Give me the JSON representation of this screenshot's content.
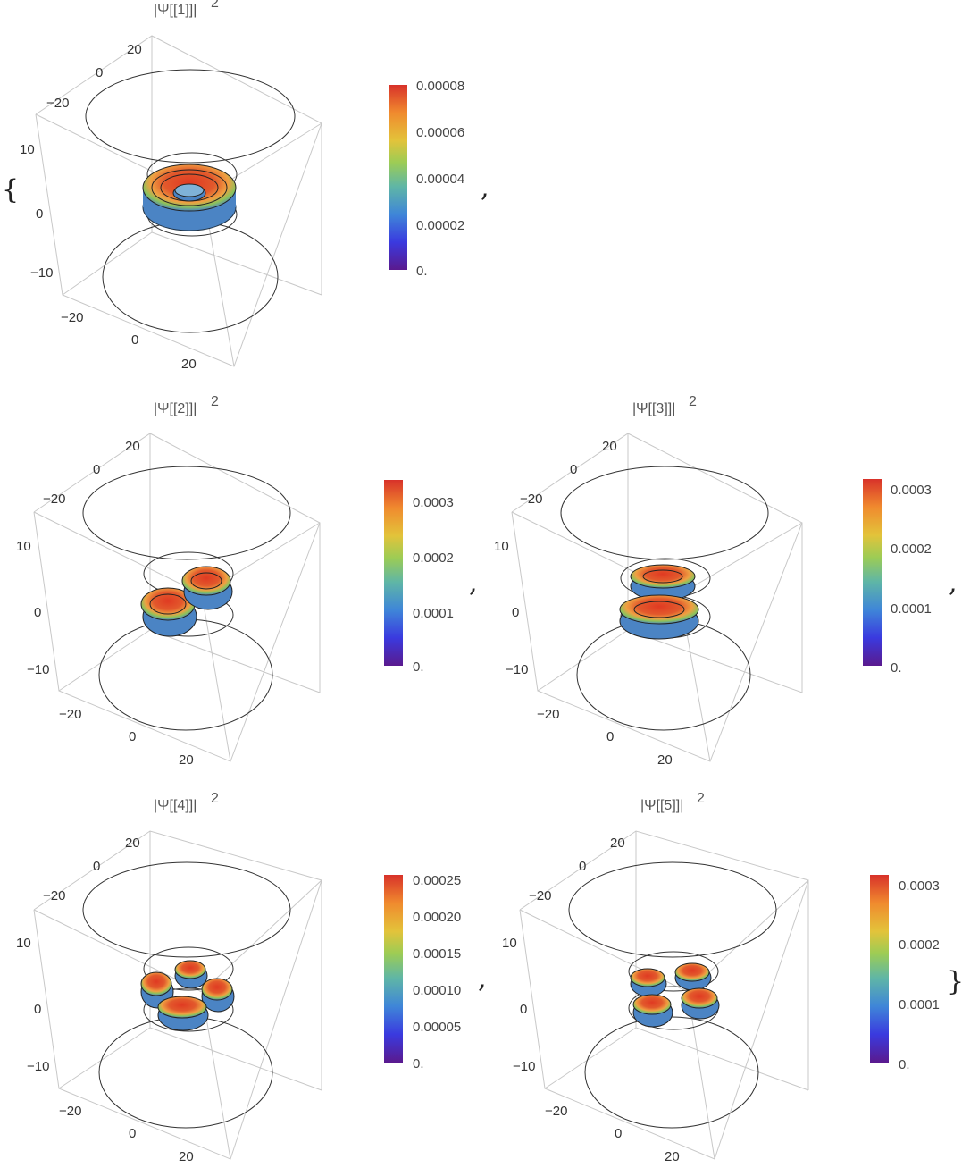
{
  "punctuation": {
    "open": "{",
    "close": "}",
    "comma": ","
  },
  "palette": [
    "#5a1a8e",
    "#3a3adf",
    "#3f86d8",
    "#5fb6a6",
    "#9ccc55",
    "#e3c33a",
    "#f08a2e",
    "#d8322a"
  ],
  "body_colors": {
    "outer": "#4b84c4",
    "inner": "#d94a2a",
    "mid": "#e59a3a",
    "rim": "#7dbf5f"
  },
  "axes": {
    "z_ticks": [
      "10",
      "0",
      "−10"
    ],
    "top_ticks": [
      "20",
      "0",
      "−20"
    ],
    "bottom_ticks": [
      "−20",
      "0",
      "20"
    ]
  },
  "plots": [
    {
      "title": "|Ψ[[1]]|",
      "exponent": "2",
      "shape": "torus",
      "cb_ticks": [
        "0.00008",
        "0.00006",
        "0.00004",
        "0.00002",
        "0."
      ]
    },
    {
      "title": "|Ψ[[2]]|",
      "exponent": "2",
      "shape": "two-lobes-diag",
      "cb_ticks": [
        "0.0003",
        "0.0002",
        "0.0001",
        "0."
      ]
    },
    {
      "title": "|Ψ[[3]]|",
      "exponent": "2",
      "shape": "two-lobes-stacked",
      "cb_ticks": [
        "0.0003",
        "0.0002",
        "0.0001",
        "0."
      ]
    },
    {
      "title": "|Ψ[[4]]|",
      "exponent": "2",
      "shape": "four-lobes",
      "cb_ticks": [
        "0.00025",
        "0.00020",
        "0.00015",
        "0.00010",
        "0.00005",
        "0."
      ]
    },
    {
      "title": "|Ψ[[5]]|",
      "exponent": "2",
      "shape": "four-lobes-stacked",
      "cb_ticks": [
        "0.0003",
        "0.0002",
        "0.0001",
        "0."
      ]
    }
  ]
}
